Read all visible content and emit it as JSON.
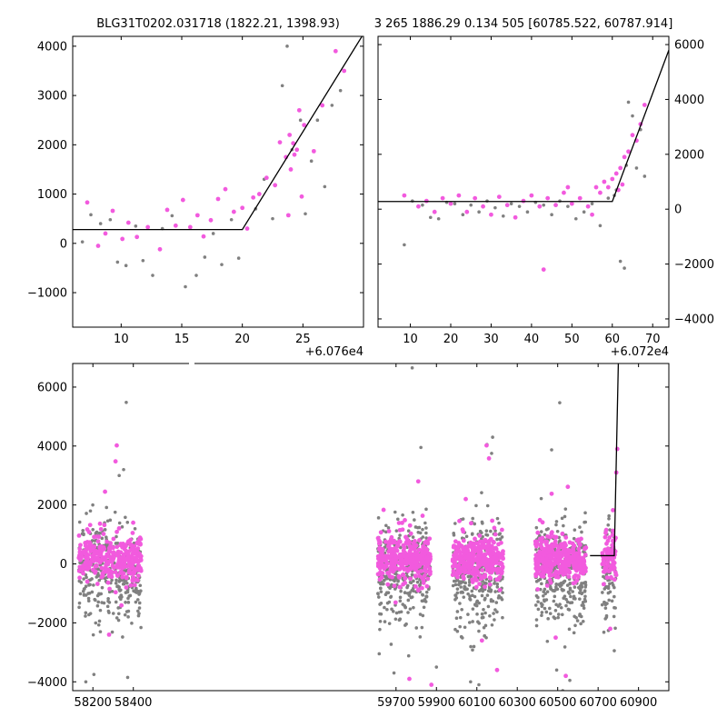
{
  "chart_data": [
    {
      "id": "top-left",
      "type": "scatter",
      "title": "BLG31T0202.031718 (1822.21, 1398.93)",
      "x_offset_label": "+6.076e4",
      "xlim": [
        6,
        30
      ],
      "ylim": [
        -1700,
        4200
      ],
      "xticks": [
        10,
        15,
        20,
        25
      ],
      "yticks": [
        -1000,
        0,
        1000,
        2000,
        3000,
        4000
      ],
      "yaxis_side": "left",
      "colors": {
        "series_a": "#f25ade",
        "series_b": "#808080",
        "model": "#000000"
      },
      "model_line": [
        [
          6,
          280
        ],
        [
          20,
          280
        ],
        [
          30,
          4250
        ]
      ],
      "series": [
        {
          "color_key": "series_b",
          "points": [
            [
              6.8,
              30
            ],
            [
              7.5,
              580
            ],
            [
              8.3,
              400
            ],
            [
              9.1,
              480
            ],
            [
              9.7,
              -380
            ],
            [
              10.4,
              -450
            ],
            [
              11.2,
              350
            ],
            [
              11.8,
              -350
            ],
            [
              12.6,
              -650
            ],
            [
              13.4,
              300
            ],
            [
              14.2,
              560
            ],
            [
              15.3,
              -880
            ],
            [
              16.2,
              -650
            ],
            [
              16.9,
              -280
            ],
            [
              17.6,
              200
            ],
            [
              18.3,
              -430
            ],
            [
              19.1,
              480
            ],
            [
              19.7,
              -300
            ],
            [
              21.1,
              700
            ],
            [
              21.8,
              1300
            ],
            [
              22.5,
              500
            ],
            [
              23.3,
              3200
            ],
            [
              23.7,
              4000
            ],
            [
              24.1,
              1900
            ],
            [
              24.8,
              2500
            ],
            [
              25.2,
              600
            ],
            [
              25.7,
              1670
            ],
            [
              26.2,
              2500
            ],
            [
              26.8,
              1150
            ],
            [
              27.4,
              2800
            ],
            [
              28.1,
              3100
            ]
          ]
        },
        {
          "color_key": "series_a",
          "points": [
            [
              7.2,
              830
            ],
            [
              8.1,
              -50
            ],
            [
              8.7,
              200
            ],
            [
              9.3,
              660
            ],
            [
              10.1,
              90
            ],
            [
              10.6,
              420
            ],
            [
              11.3,
              130
            ],
            [
              12.2,
              330
            ],
            [
              13.2,
              -120
            ],
            [
              13.8,
              680
            ],
            [
              14.5,
              360
            ],
            [
              15.1,
              880
            ],
            [
              15.7,
              330
            ],
            [
              16.3,
              570
            ],
            [
              16.8,
              140
            ],
            [
              17.4,
              470
            ],
            [
              18.0,
              900
            ],
            [
              18.6,
              1100
            ],
            [
              19.3,
              640
            ],
            [
              20.0,
              720
            ],
            [
              20.4,
              300
            ],
            [
              20.9,
              930
            ],
            [
              21.4,
              1000
            ],
            [
              22.0,
              1330
            ],
            [
              22.7,
              1180
            ],
            [
              23.1,
              2050
            ],
            [
              23.6,
              1750
            ],
            [
              23.9,
              2200
            ],
            [
              24.0,
              1500
            ],
            [
              24.2,
              2030
            ],
            [
              24.3,
              1800
            ],
            [
              24.5,
              1900
            ],
            [
              24.7,
              2700
            ],
            [
              25.1,
              2400
            ],
            [
              25.9,
              1870
            ],
            [
              26.6,
              2800
            ],
            [
              27.7,
              3900
            ],
            [
              28.4,
              3500
            ],
            [
              23.8,
              570
            ],
            [
              24.9,
              950
            ]
          ]
        }
      ]
    },
    {
      "id": "top-right",
      "type": "scatter",
      "title": "3 265 1886.29 0.134 505 [60785.522, 60787.914]",
      "x_offset_label": "+6.072e4",
      "xlim": [
        2,
        74
      ],
      "ylim": [
        -4300,
        6300
      ],
      "xticks": [
        10,
        20,
        30,
        40,
        50,
        60,
        70
      ],
      "yticks": [
        -4000,
        -2000,
        0,
        2000,
        4000,
        6000
      ],
      "yaxis_side": "right",
      "colors": {
        "series_a": "#f25ade",
        "series_b": "#808080",
        "model": "#000000"
      },
      "model_line": [
        [
          2,
          280
        ],
        [
          60,
          280
        ],
        [
          74,
          5800
        ]
      ],
      "series": [
        {
          "color_key": "series_b",
          "points": [
            [
              8.5,
              -1300
            ],
            [
              10.5,
              300
            ],
            [
              13,
              150
            ],
            [
              15,
              -300
            ],
            [
              17,
              -350
            ],
            [
              19,
              250
            ],
            [
              21,
              200
            ],
            [
              23,
              -200
            ],
            [
              25,
              150
            ],
            [
              27,
              -100
            ],
            [
              29,
              300
            ],
            [
              31,
              50
            ],
            [
              33,
              -250
            ],
            [
              35,
              200
            ],
            [
              37,
              100
            ],
            [
              39,
              -100
            ],
            [
              41,
              250
            ],
            [
              43,
              150
            ],
            [
              45,
              -200
            ],
            [
              47,
              300
            ],
            [
              49,
              100
            ],
            [
              51,
              -350
            ],
            [
              53,
              -100
            ],
            [
              55,
              200
            ],
            [
              57,
              -600
            ],
            [
              59,
              400
            ],
            [
              61,
              700
            ],
            [
              62,
              -1900
            ],
            [
              63,
              -2150
            ],
            [
              64,
              3900
            ],
            [
              65,
              3400
            ],
            [
              66,
              1500
            ],
            [
              67,
              2900
            ],
            [
              68,
              1200
            ],
            [
              63.5,
              1600
            ],
            [
              60.5,
              500
            ]
          ]
        },
        {
          "color_key": "series_a",
          "points": [
            [
              8.5,
              500
            ],
            [
              12,
              100
            ],
            [
              14,
              300
            ],
            [
              16,
              -100
            ],
            [
              18,
              400
            ],
            [
              20,
              200
            ],
            [
              22,
              500
            ],
            [
              24,
              -100
            ],
            [
              26,
              400
            ],
            [
              28,
              100
            ],
            [
              30,
              -200
            ],
            [
              32,
              450
            ],
            [
              34,
              150
            ],
            [
              36,
              -300
            ],
            [
              38,
              300
            ],
            [
              40,
              500
            ],
            [
              42,
              100
            ],
            [
              43,
              -2200
            ],
            [
              44,
              400
            ],
            [
              46,
              150
            ],
            [
              48,
              600
            ],
            [
              49,
              800
            ],
            [
              50,
              200
            ],
            [
              52,
              400
            ],
            [
              54,
              100
            ],
            [
              55,
              -200
            ],
            [
              56,
              800
            ],
            [
              57,
              600
            ],
            [
              58,
              1000
            ],
            [
              59,
              800
            ],
            [
              60,
              1100
            ],
            [
              61,
              1300
            ],
            [
              62,
              1500
            ],
            [
              63,
              1900
            ],
            [
              64,
              2100
            ],
            [
              65,
              2700
            ],
            [
              66,
              2500
            ],
            [
              67,
              3100
            ],
            [
              68,
              3800
            ],
            [
              61.5,
              700
            ],
            [
              62.5,
              900
            ]
          ]
        }
      ]
    },
    {
      "id": "bottom",
      "type": "scatter",
      "title": "",
      "xlim": [
        58100,
        61050
      ],
      "ylim": [
        -4300,
        6800
      ],
      "xticks": [
        58200,
        58400,
        59700,
        59900,
        60100,
        60300,
        60500,
        60700,
        60900
      ],
      "yticks": [
        -4000,
        -2000,
        0,
        2000,
        4000,
        6000
      ],
      "yaxis_side": "left",
      "colors": {
        "series_a": "#f25ade",
        "series_b": "#808080",
        "model": "#000000"
      },
      "model_line": [
        [
          60660,
          280
        ],
        [
          60780,
          280
        ],
        [
          60800,
          6800
        ]
      ],
      "seasons": [
        {
          "x_start": 58130,
          "x_end": 58440,
          "count": 330
        },
        {
          "x_start": 59610,
          "x_end": 59870,
          "count": 330
        },
        {
          "x_start": 59980,
          "x_end": 60230,
          "count": 330
        },
        {
          "x_start": 60390,
          "x_end": 60640,
          "count": 330
        },
        {
          "x_start": 60720,
          "x_end": 60790,
          "count": 70
        }
      ],
      "outliers": [
        {
          "color_key": "series_b",
          "points": [
            [
              58365,
              5480
            ],
            [
              58330,
              3000
            ],
            [
              58352,
              3200
            ],
            [
              58165,
              -4000
            ],
            [
              58205,
              -3750
            ],
            [
              58372,
              -3850
            ],
            [
              59780,
              6650
            ],
            [
              59690,
              -3700
            ],
            [
              59823,
              3950
            ],
            [
              59900,
              -3500
            ],
            [
              60069,
              -4000
            ],
            [
              60150,
              4050
            ],
            [
              60173,
              3750
            ],
            [
              60178,
              4300
            ],
            [
              60110,
              -4100
            ],
            [
              60510,
              5470
            ],
            [
              60470,
              3870
            ],
            [
              60495,
              -3600
            ],
            [
              60560,
              -3950
            ],
            [
              60525,
              -4300
            ],
            [
              60785,
              -2180
            ],
            [
              60730,
              -1300
            ]
          ]
        },
        {
          "color_key": "series_a",
          "points": [
            [
              58318,
              4020
            ],
            [
              58312,
              3480
            ],
            [
              58260,
              2450
            ],
            [
              58280,
              -2400
            ],
            [
              59766,
              -3900
            ],
            [
              59810,
              2800
            ],
            [
              59875,
              -4100
            ],
            [
              60148,
              4020
            ],
            [
              60160,
              3580
            ],
            [
              60045,
              2200
            ],
            [
              60125,
              -2600
            ],
            [
              60200,
              -3600
            ],
            [
              60470,
              2380
            ],
            [
              60490,
              -2500
            ],
            [
              60540,
              -3800
            ],
            [
              60795,
              3900
            ],
            [
              60790,
              3100
            ],
            [
              60760,
              -2200
            ]
          ]
        }
      ]
    }
  ]
}
